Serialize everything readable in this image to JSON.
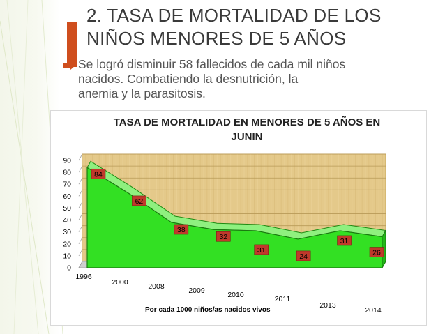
{
  "slide": {
    "title_line1": "2. TASA DE MORTALIDAD DE LOS",
    "title_line2": "NIÑOS MENORES DE 5 AÑOS",
    "bullet_line1": "Se logró disminuir 58 fallecidos de cada mil niños",
    "bullet_line2": "nacidos. Combatiendo la desnutrición, la",
    "bullet_line3": "anemia y la parasitosis.",
    "bullet_icon": "arrow-right-icon",
    "accent_color": "#cf4e1e"
  },
  "chart_data": {
    "type": "area",
    "title_line1": "TASA DE MORTALIDAD EN MENORES DE 5 AÑOS EN",
    "title_line2": "JUNIN",
    "xlabel": "Por cada 1000 niños/as nacidos vivos",
    "ylabel": "",
    "categories": [
      "1996",
      "2000",
      "2008",
      "2009",
      "2010",
      "2011",
      "2013",
      "2014"
    ],
    "values": [
      84,
      62,
      38,
      32,
      31,
      24,
      31,
      26
    ],
    "ylim": [
      0,
      90
    ],
    "yticks": [
      0,
      10,
      20,
      30,
      40,
      50,
      60,
      70,
      80,
      90
    ],
    "grid": true,
    "fill_color": "#33e023",
    "label_color": "#c0392b"
  }
}
